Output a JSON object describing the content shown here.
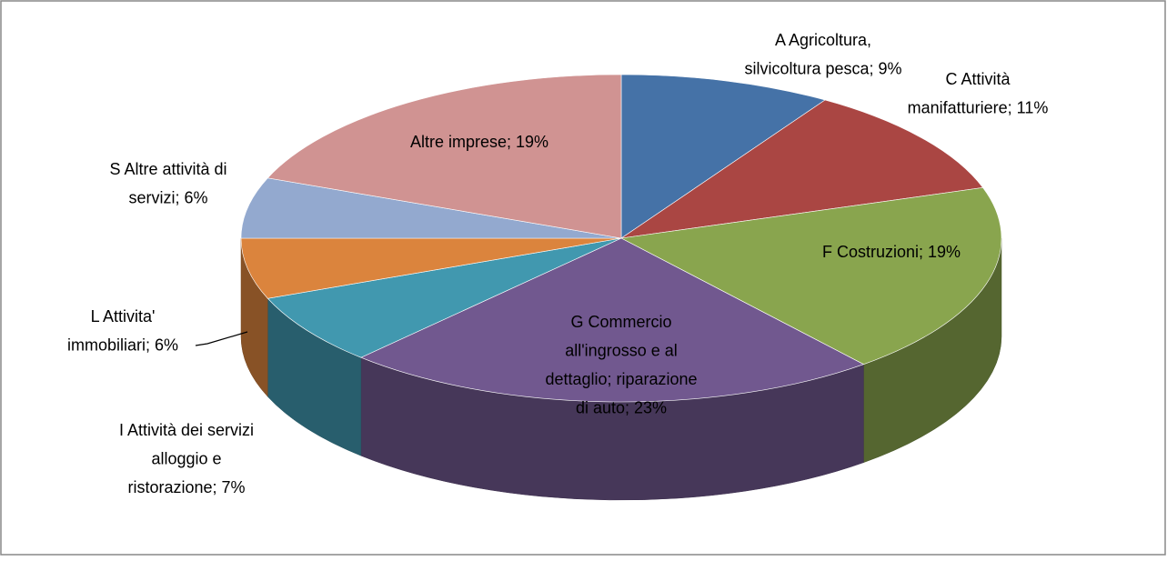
{
  "chart_data": {
    "type": "pie3d",
    "labels": [
      [
        "A Agricoltura,",
        "silvicoltura pesca; 9%"
      ],
      [
        "C Attività",
        "manifatturiere; 11%"
      ],
      [
        "F Costruzioni; 19%"
      ],
      [
        "G Commercio",
        "all'ingrosso e al",
        "dettaglio; riparazione",
        "di auto; 23%"
      ],
      [
        "I Attività dei servizi",
        "alloggio e",
        "ristorazione; 7%"
      ],
      [
        "L Attivita'",
        "immobiliari; 6%"
      ],
      [
        "S Altre attività di",
        "servizi; 6%"
      ],
      [
        "Altre imprese; 19%"
      ]
    ],
    "values": [
      9,
      11,
      19,
      23,
      7,
      6,
      6,
      19
    ],
    "colors": [
      "#4572a7",
      "#aa4643",
      "#89a54e",
      "#71588f",
      "#4198af",
      "#db843d",
      "#93a9cf",
      "#d09392"
    ]
  }
}
